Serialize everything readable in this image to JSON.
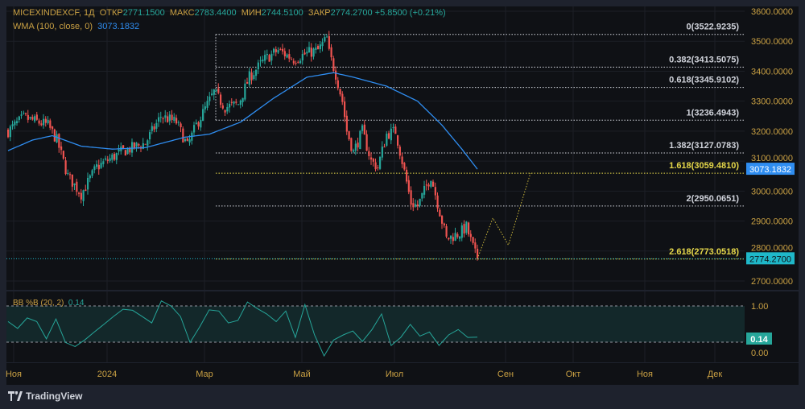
{
  "legend": {
    "symbol": "MICEXINDEXCF, 1Д",
    "open_label": "ОТКР",
    "open": "2771.1500",
    "high_label": "МАКС",
    "high": "2783.4400",
    "low_label": "МИН",
    "low": "2744.5100",
    "close_label": "ЗАКР",
    "close": "2774.2700",
    "change": "+5.8500 (+0.21%)",
    "wma_label": "WMA (100, close, 0)",
    "wma_value": "3073.1832"
  },
  "indicator": {
    "label": "BB %B (20, 2)",
    "value": "0.14",
    "upper": "1.00",
    "lower": "0.00",
    "badge": "0.14"
  },
  "brand": "TradingView",
  "colors": {
    "up": "#26a69a",
    "down": "#ef5350",
    "wma": "#2f8df0",
    "axis_text": "#c9a043",
    "fib_white": "#d1d4dc",
    "fib_yellow": "#e6d84a",
    "bb": "#26a69a"
  },
  "chart_data": {
    "type": "candlestick",
    "ylim": [
      2700,
      3600
    ],
    "y_ticks": [
      "3600.0000",
      "3500.0000",
      "3400.0000",
      "3300.0000",
      "3200.0000",
      "3100.0000",
      "3000.0000",
      "2900.0000",
      "2800.0000",
      "2700.0000"
    ],
    "y_tick_values": [
      3600,
      3500,
      3400,
      3300,
      3200,
      3100,
      3000,
      2900,
      2800,
      2700
    ],
    "x_ticks": [
      "Ноя",
      "2024",
      "Мар",
      "Май",
      "Июл",
      "Сен",
      "Окт",
      "Ноя",
      "Дек"
    ],
    "bar_count": 213,
    "close_path": [
      [
        0,
        3200
      ],
      [
        7,
        3245
      ],
      [
        18,
        3220
      ],
      [
        22,
        3170
      ],
      [
        27,
        3050
      ],
      [
        33,
        2990
      ],
      [
        40,
        3080
      ],
      [
        51,
        3130
      ],
      [
        62,
        3160
      ],
      [
        69,
        3250
      ],
      [
        76,
        3230
      ],
      [
        81,
        3150
      ],
      [
        85,
        3220
      ],
      [
        93,
        3330
      ],
      [
        98,
        3280
      ],
      [
        104,
        3290
      ],
      [
        109,
        3380
      ],
      [
        116,
        3440
      ],
      [
        122,
        3470
      ],
      [
        129,
        3440
      ],
      [
        135,
        3460
      ],
      [
        140,
        3470
      ],
      [
        144,
        3510
      ],
      [
        145,
        3460
      ],
      [
        148,
        3390
      ],
      [
        151,
        3300
      ],
      [
        153,
        3200
      ],
      [
        156,
        3130
      ],
      [
        160,
        3200
      ],
      [
        164,
        3100
      ],
      [
        167,
        3080
      ],
      [
        171,
        3190
      ],
      [
        175,
        3200
      ],
      [
        178,
        3100
      ],
      [
        182,
        2960
      ],
      [
        185,
        2950
      ],
      [
        191,
        3050
      ],
      [
        195,
        2930
      ],
      [
        198,
        2840
      ],
      [
        204,
        2860
      ],
      [
        207,
        2880
      ],
      [
        211,
        2790
      ],
      [
        212,
        2774.27
      ]
    ],
    "wma_path": [
      [
        0,
        3135
      ],
      [
        11,
        3170
      ],
      [
        20,
        3185
      ],
      [
        33,
        3150
      ],
      [
        47,
        3140
      ],
      [
        62,
        3145
      ],
      [
        80,
        3180
      ],
      [
        91,
        3190
      ],
      [
        105,
        3230
      ],
      [
        120,
        3310
      ],
      [
        135,
        3380
      ],
      [
        147,
        3395
      ],
      [
        156,
        3380
      ],
      [
        171,
        3350
      ],
      [
        185,
        3300
      ],
      [
        196,
        3220
      ],
      [
        205,
        3140
      ],
      [
        212,
        3073.18
      ]
    ],
    "last_price": 2774.27,
    "last_price_label": "2774.2700",
    "wma_last": 3073.1832,
    "wma_last_label": "3073.1832",
    "fib_levels": [
      {
        "label": "0(3522.9235)",
        "price": 3522.9235,
        "highlight": false
      },
      {
        "label": "0.382(3413.5075)",
        "price": 3413.5075,
        "highlight": false
      },
      {
        "label": "0.618(3345.9102)",
        "price": 3345.9102,
        "highlight": false
      },
      {
        "label": "1(3236.4943)",
        "price": 3236.4943,
        "highlight": false
      },
      {
        "label": "1.382(3127.0783)",
        "price": 3127.0783,
        "highlight": false
      },
      {
        "label": "1.618(3059.4810)",
        "price": 3059.481,
        "highlight": true
      },
      {
        "label": "2(2950.0651)",
        "price": 2950.0651,
        "highlight": false
      },
      {
        "label": "2.618(2773.0518)",
        "price": 2773.0518,
        "highlight": true
      }
    ],
    "projection_path": [
      [
        212,
        2774
      ],
      [
        219,
        2910
      ],
      [
        226,
        2820
      ],
      [
        236,
        3060
      ]
    ],
    "bb_percent_b": [
      0.57,
      0.38,
      0.67,
      0.57,
      0.09,
      0.64,
      -0.01,
      -0.12,
      0.06,
      0.28,
      0.49,
      0.71,
      0.91,
      0.88,
      0.71,
      0.53,
      1.14,
      1.0,
      0.71,
      -0.01,
      0.42,
      0.89,
      0.86,
      0.53,
      0.6,
      1.11,
      0.93,
      0.78,
      0.57,
      0.86,
      0.13,
      1.04,
      0.2,
      -0.38,
      0.06,
      0.2,
      0.31,
      0.02,
      0.35,
      0.78,
      -0.09,
      0.13,
      0.49,
      0.17,
      0.28,
      -0.09,
      0.2,
      0.35,
      0.13,
      0.14
    ]
  }
}
